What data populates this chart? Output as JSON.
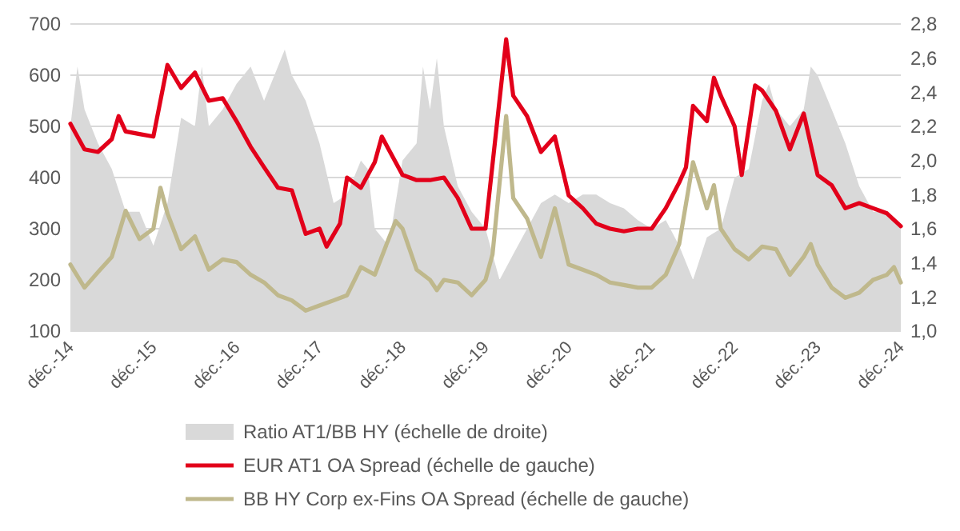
{
  "chart_data": {
    "type": "line",
    "legend": "bottom",
    "grid": "y",
    "xlim": [
      "2014-12",
      "2024-12"
    ],
    "xticks": [
      {
        "value": "2014-12",
        "label": "déc.-14"
      },
      {
        "value": "2015-12",
        "label": "déc.-15"
      },
      {
        "value": "2016-12",
        "label": "déc.-16"
      },
      {
        "value": "2017-12",
        "label": "déc.-17"
      },
      {
        "value": "2018-12",
        "label": "déc.-18"
      },
      {
        "value": "2019-12",
        "label": "déc.-19"
      },
      {
        "value": "2020-12",
        "label": "déc.-20"
      },
      {
        "value": "2021-12",
        "label": "déc.-21"
      },
      {
        "value": "2022-12",
        "label": "déc.-22"
      },
      {
        "value": "2023-12",
        "label": "déc.-23"
      },
      {
        "value": "2024-12",
        "label": "déc.-24"
      }
    ],
    "ylim": [
      100,
      700
    ],
    "yticks": [
      100,
      200,
      300,
      400,
      500,
      600,
      700
    ],
    "y2lim": [
      1,
      2.8
    ],
    "y2ticks": [
      {
        "value": 1,
        "label": "1,0"
      },
      {
        "value": 1.2,
        "label": "1,2"
      },
      {
        "value": 1.4,
        "label": "1,4"
      },
      {
        "value": 1.6,
        "label": "1,6"
      },
      {
        "value": 1.8,
        "label": "1,8"
      },
      {
        "value": 2,
        "label": "2,0"
      },
      {
        "value": 2.2,
        "label": "2,2"
      },
      {
        "value": 2.4,
        "label": "2,4"
      },
      {
        "value": 2.6,
        "label": "2,6"
      },
      {
        "value": 2.8,
        "label": "2,8"
      }
    ],
    "series": [
      {
        "name": "Ratio AT1/BB HY (échelle de droite)",
        "type": "area",
        "axis": "y2",
        "color": "#d9d9d9",
        "x": [
          "2014-12",
          "2015-01",
          "2015-02",
          "2015-04",
          "2015-06",
          "2015-08",
          "2015-10",
          "2015-12",
          "2016-02",
          "2016-04",
          "2016-06",
          "2016-07",
          "2016-08",
          "2016-10",
          "2016-12",
          "2017-02",
          "2017-04",
          "2017-06",
          "2017-07",
          "2017-08",
          "2017-10",
          "2017-12",
          "2018-02",
          "2018-04",
          "2018-06",
          "2018-07",
          "2018-08",
          "2018-10",
          "2018-12",
          "2019-02",
          "2019-03",
          "2019-04",
          "2019-05",
          "2019-06",
          "2019-08",
          "2019-10",
          "2019-12",
          "2020-02",
          "2020-04",
          "2020-06",
          "2020-08",
          "2020-10",
          "2020-12",
          "2021-02",
          "2021-04",
          "2021-06",
          "2021-08",
          "2021-10",
          "2021-12",
          "2022-02",
          "2022-04",
          "2022-06",
          "2022-08",
          "2022-10",
          "2022-12",
          "2023-02",
          "2023-04",
          "2023-05",
          "2023-06",
          "2023-08",
          "2023-10",
          "2023-11",
          "2023-12",
          "2024-02",
          "2024-04",
          "2024-06",
          "2024-08",
          "2024-10",
          "2024-12"
        ],
        "values": [
          2.2,
          2.55,
          2.3,
          2.1,
          1.95,
          1.7,
          1.7,
          1.5,
          1.75,
          2.25,
          2.2,
          2.55,
          2.2,
          2.3,
          2.45,
          2.55,
          2.35,
          2.55,
          2.65,
          2.5,
          2.35,
          2.1,
          1.75,
          1.8,
          2.0,
          1.95,
          1.6,
          1.5,
          2.0,
          2.1,
          2.55,
          2.3,
          2.6,
          2.2,
          1.85,
          1.7,
          1.6,
          1.3,
          1.45,
          1.6,
          1.75,
          1.8,
          1.75,
          1.8,
          1.8,
          1.75,
          1.72,
          1.65,
          1.6,
          1.65,
          1.5,
          1.3,
          1.55,
          1.6,
          1.9,
          1.95,
          2.35,
          2.45,
          2.3,
          2.2,
          2.3,
          2.55,
          2.5,
          2.3,
          2.1,
          1.85,
          1.7,
          1.7,
          1.6
        ]
      },
      {
        "name": "EUR AT1 OA Spread (échelle de gauche)",
        "color": "#e2001a",
        "x": [
          "2014-12",
          "2015-02",
          "2015-04",
          "2015-06",
          "2015-07",
          "2015-08",
          "2015-10",
          "2015-12",
          "2016-02",
          "2016-04",
          "2016-06",
          "2016-08",
          "2016-10",
          "2016-12",
          "2017-02",
          "2017-04",
          "2017-06",
          "2017-08",
          "2017-10",
          "2017-12",
          "2018-01",
          "2018-03",
          "2018-04",
          "2018-06",
          "2018-08",
          "2018-09",
          "2018-10",
          "2018-12",
          "2019-02",
          "2019-04",
          "2019-06",
          "2019-08",
          "2019-10",
          "2019-12",
          "2020-03",
          "2020-04",
          "2020-06",
          "2020-08",
          "2020-10",
          "2020-12",
          "2021-02",
          "2021-04",
          "2021-06",
          "2021-08",
          "2021-10",
          "2021-12",
          "2022-02",
          "2022-04",
          "2022-05",
          "2022-06",
          "2022-08",
          "2022-09",
          "2022-10",
          "2022-12",
          "2023-01",
          "2023-03",
          "2023-04",
          "2023-06",
          "2023-08",
          "2023-10",
          "2023-12",
          "2024-02",
          "2024-04",
          "2024-06",
          "2024-08",
          "2024-10",
          "2024-12"
        ],
        "values": [
          505,
          455,
          450,
          475,
          520,
          490,
          485,
          480,
          620,
          575,
          605,
          550,
          555,
          510,
          460,
          420,
          380,
          375,
          290,
          300,
          265,
          310,
          400,
          380,
          430,
          480,
          455,
          405,
          395,
          395,
          400,
          360,
          300,
          300,
          670,
          560,
          520,
          450,
          480,
          365,
          340,
          310,
          300,
          295,
          300,
          300,
          340,
          390,
          420,
          540,
          510,
          595,
          560,
          500,
          405,
          580,
          570,
          530,
          455,
          525,
          405,
          385,
          340,
          350,
          340,
          330,
          305
        ]
      },
      {
        "name": "BB HY Corp ex-Fins OA Spread (échelle de gauche)",
        "color": "#bfb88c",
        "x": [
          "2014-12",
          "2015-02",
          "2015-04",
          "2015-06",
          "2015-08",
          "2015-10",
          "2015-12",
          "2016-01",
          "2016-02",
          "2016-04",
          "2016-06",
          "2016-08",
          "2016-10",
          "2016-12",
          "2017-02",
          "2017-04",
          "2017-06",
          "2017-08",
          "2017-10",
          "2017-12",
          "2018-02",
          "2018-04",
          "2018-06",
          "2018-08",
          "2018-10",
          "2018-11",
          "2018-12",
          "2019-02",
          "2019-04",
          "2019-05",
          "2019-06",
          "2019-08",
          "2019-10",
          "2019-12",
          "2020-01",
          "2020-03",
          "2020-04",
          "2020-06",
          "2020-08",
          "2020-10",
          "2020-12",
          "2021-02",
          "2021-04",
          "2021-06",
          "2021-08",
          "2021-10",
          "2021-12",
          "2022-02",
          "2022-04",
          "2022-06",
          "2022-08",
          "2022-09",
          "2022-10",
          "2022-12",
          "2023-02",
          "2023-04",
          "2023-06",
          "2023-08",
          "2023-10",
          "2023-11",
          "2023-12",
          "2024-02",
          "2024-04",
          "2024-06",
          "2024-08",
          "2024-10",
          "2024-11",
          "2024-12"
        ],
        "values": [
          230,
          185,
          215,
          245,
          335,
          280,
          300,
          380,
          330,
          260,
          285,
          220,
          240,
          235,
          210,
          195,
          170,
          160,
          140,
          150,
          160,
          170,
          225,
          210,
          280,
          315,
          300,
          220,
          200,
          180,
          200,
          195,
          170,
          200,
          250,
          520,
          360,
          320,
          245,
          340,
          230,
          220,
          210,
          195,
          190,
          185,
          185,
          210,
          270,
          430,
          340,
          385,
          300,
          260,
          240,
          265,
          260,
          210,
          245,
          270,
          230,
          185,
          165,
          175,
          200,
          210,
          225,
          195
        ]
      }
    ]
  }
}
